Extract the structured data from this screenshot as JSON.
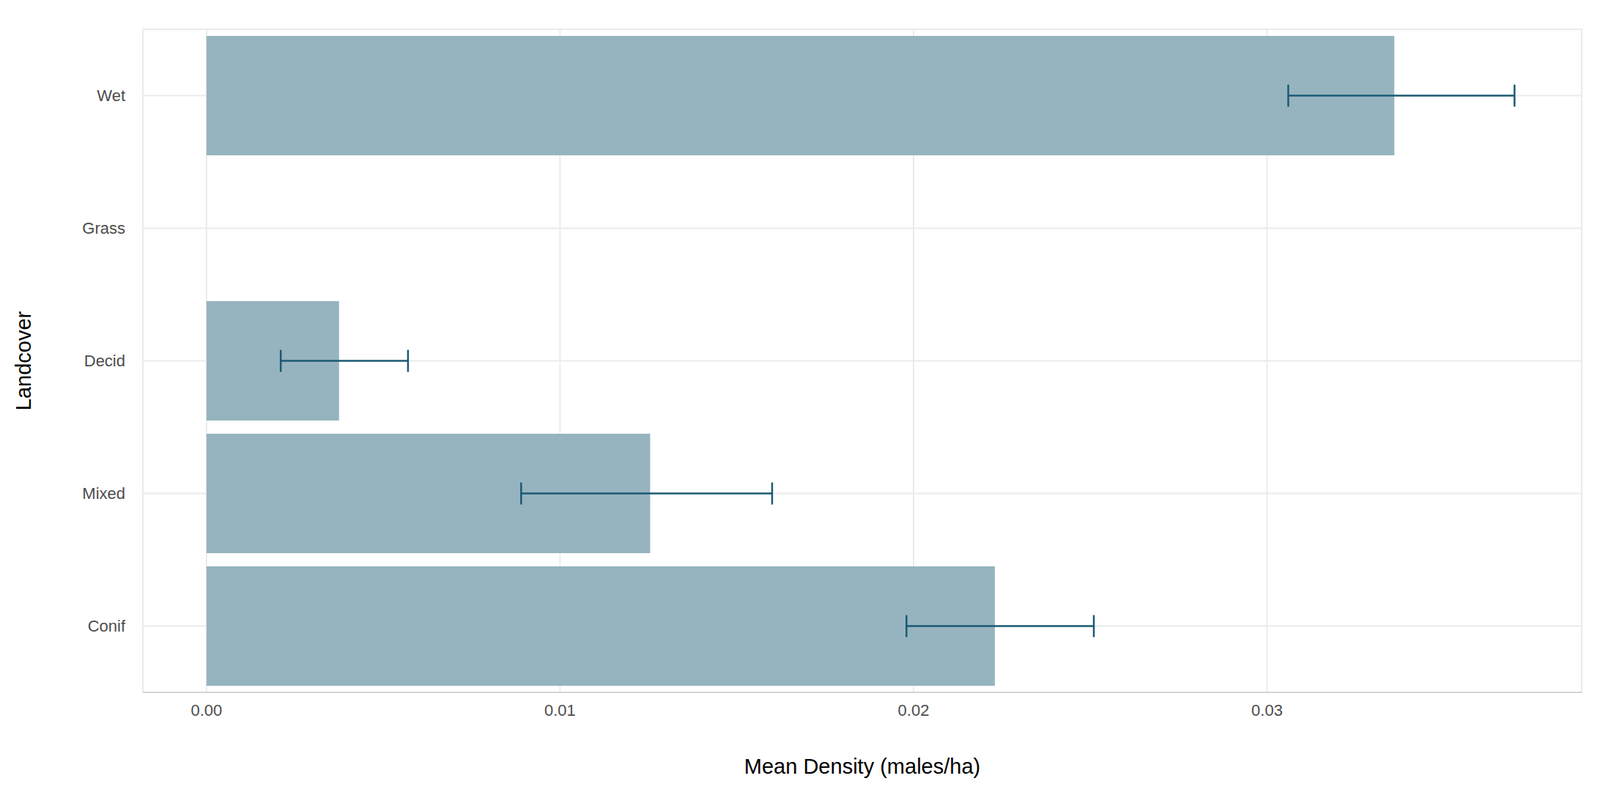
{
  "chart_data": {
    "type": "bar",
    "orientation": "horizontal",
    "x_label": "Mean Density (males/ha)",
    "y_label": "Landcover",
    "categories": [
      "Wet",
      "Grass",
      "Decid",
      "Mixed",
      "Conif"
    ],
    "values": [
      0.0336,
      0,
      0.00375,
      0.01255,
      0.0223
    ],
    "error_low": [
      0.0306,
      0,
      0.0021,
      0.0089,
      0.0198
    ],
    "error_high": [
      0.037,
      0,
      0.0057,
      0.016,
      0.0251
    ],
    "color": "#96b4bf",
    "xlim": [
      -0.0018,
      0.0389
    ],
    "xticks": [
      {
        "value": 0,
        "label": "0.00"
      },
      0.01,
      0.02,
      0.03
    ],
    "grid": true
  }
}
